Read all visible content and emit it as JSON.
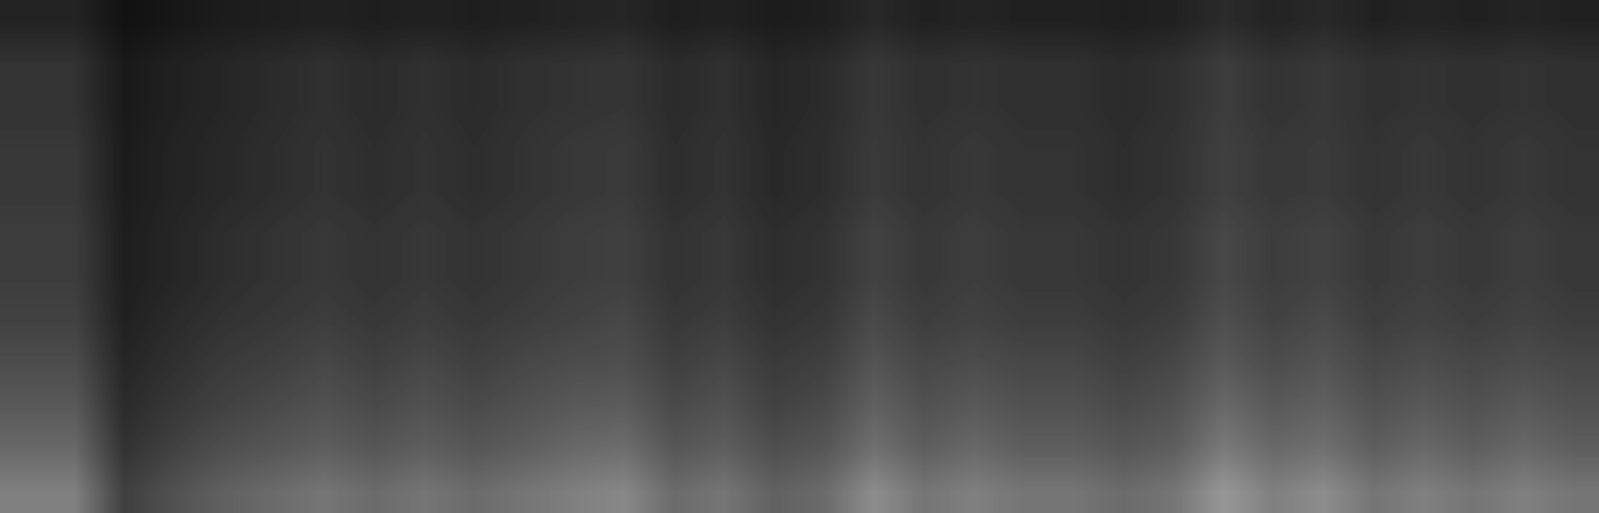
{
  "chart_data": {
    "type": "heatmap",
    "color": "gray",
    "tick_labels": false,
    "color_range": [
      0,
      100
    ],
    "cells": [
      [
        14,
        14,
        7,
        9,
        11,
        12,
        13,
        12,
        13,
        12,
        13,
        14,
        15,
        12,
        13,
        11,
        12,
        16,
        13,
        14,
        13,
        13,
        12,
        13,
        17,
        14,
        16,
        13,
        14,
        13,
        14,
        13
      ],
      [
        20,
        20,
        10,
        13,
        15,
        17,
        19,
        17,
        19,
        17,
        19,
        20,
        21,
        17,
        19,
        15,
        17,
        22,
        19,
        20,
        19,
        19,
        17,
        19,
        24,
        20,
        22,
        19,
        20,
        19,
        20,
        19
      ],
      [
        20,
        20,
        10,
        13,
        15,
        17,
        19,
        17,
        19,
        17,
        19,
        20,
        21,
        17,
        19,
        15,
        17,
        22,
        19,
        20,
        19,
        19,
        17,
        19,
        24,
        20,
        22,
        19,
        20,
        19,
        20,
        19
      ],
      [
        22,
        22,
        11,
        14,
        16,
        18,
        20,
        18,
        20,
        18,
        20,
        22,
        23,
        18,
        20,
        16,
        18,
        23,
        20,
        22,
        20,
        20,
        18,
        20,
        25,
        22,
        23,
        20,
        22,
        20,
        22,
        20
      ],
      [
        22,
        22,
        11,
        14,
        16,
        18,
        20,
        18,
        20,
        18,
        20,
        22,
        23,
        18,
        20,
        16,
        18,
        23,
        20,
        22,
        20,
        20,
        18,
        20,
        25,
        22,
        23,
        20,
        22,
        20,
        22,
        20
      ],
      [
        24,
        24,
        12,
        15,
        18,
        20,
        22,
        20,
        22,
        20,
        22,
        24,
        25,
        20,
        22,
        18,
        20,
        26,
        22,
        24,
        22,
        22,
        20,
        22,
        28,
        24,
        26,
        22,
        24,
        22,
        24,
        22
      ],
      [
        24,
        24,
        12,
        15,
        18,
        20,
        22,
        20,
        22,
        20,
        22,
        24,
        25,
        20,
        22,
        18,
        20,
        26,
        22,
        24,
        22,
        22,
        20,
        22,
        28,
        24,
        26,
        22,
        24,
        22,
        24,
        22
      ],
      [
        26,
        26,
        13,
        17,
        20,
        22,
        24,
        22,
        24,
        22,
        24,
        26,
        28,
        22,
        24,
        20,
        22,
        29,
        24,
        26,
        24,
        24,
        22,
        24,
        31,
        26,
        29,
        24,
        26,
        24,
        26,
        24
      ],
      [
        30,
        30,
        15,
        19,
        23,
        25,
        28,
        25,
        28,
        25,
        28,
        30,
        31,
        25,
        28,
        23,
        25,
        33,
        28,
        30,
        28,
        28,
        25,
        28,
        35,
        30,
        33,
        28,
        30,
        28,
        30,
        28
      ],
      [
        35,
        35,
        17,
        22,
        26,
        29,
        32,
        29,
        32,
        29,
        32,
        35,
        36,
        29,
        32,
        26,
        29,
        38,
        32,
        35,
        32,
        32,
        29,
        32,
        41,
        35,
        38,
        32,
        35,
        32,
        35,
        32
      ],
      [
        41,
        41,
        20,
        26,
        31,
        34,
        37,
        34,
        37,
        34,
        37,
        41,
        43,
        34,
        37,
        31,
        34,
        44,
        37,
        41,
        37,
        37,
        34,
        37,
        48,
        41,
        44,
        37,
        41,
        37,
        41,
        37
      ],
      [
        50,
        50,
        25,
        32,
        38,
        42,
        46,
        42,
        46,
        42,
        46,
        50,
        53,
        42,
        46,
        38,
        42,
        55,
        46,
        50,
        46,
        46,
        42,
        46,
        59,
        50,
        55,
        46,
        50,
        46,
        50,
        46
      ]
    ]
  }
}
